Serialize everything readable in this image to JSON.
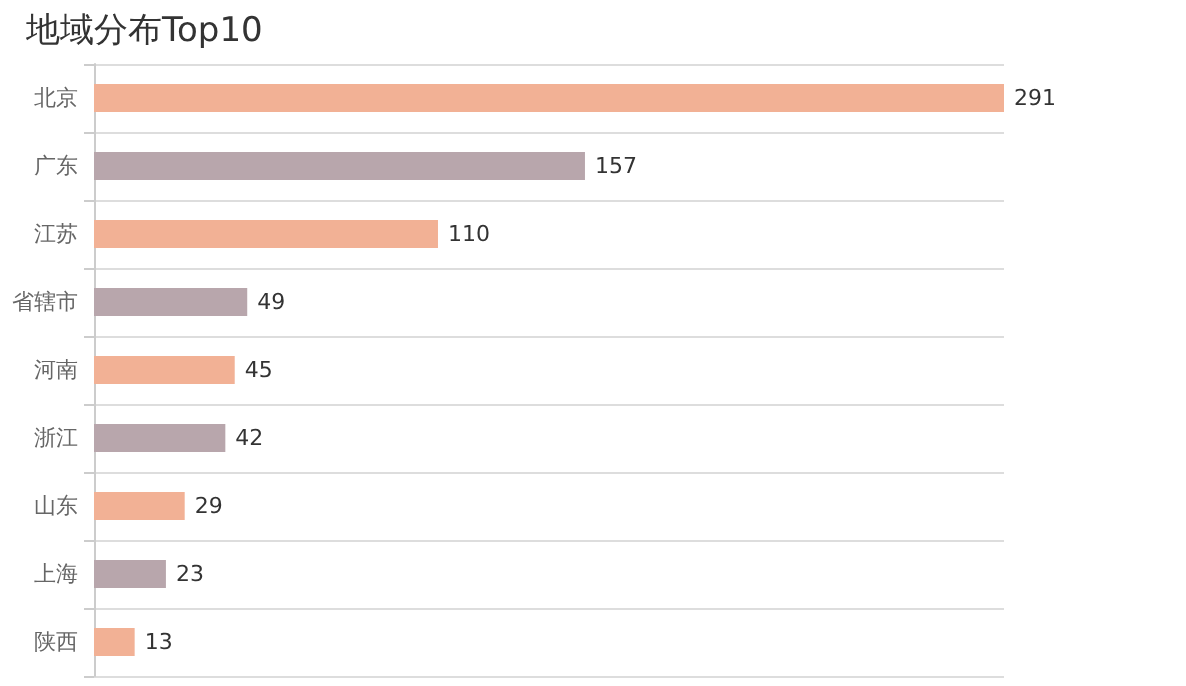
{
  "chart_data": {
    "type": "bar",
    "orientation": "horizontal",
    "title": "地域分布Top10",
    "categories": [
      "北京",
      "广东",
      "江苏",
      "省辖市",
      "河南",
      "浙江",
      "山东",
      "上海",
      "陕西"
    ],
    "values": [
      291,
      157,
      110,
      49,
      45,
      42,
      29,
      23,
      13
    ],
    "colors": [
      "#f2b195",
      "#b8a6ac",
      "#f2b195",
      "#b8a6ac",
      "#f2b195",
      "#b8a6ac",
      "#f2b195",
      "#b8a6ac",
      "#f2b195"
    ],
    "data_labels": true,
    "grid": "y"
  }
}
